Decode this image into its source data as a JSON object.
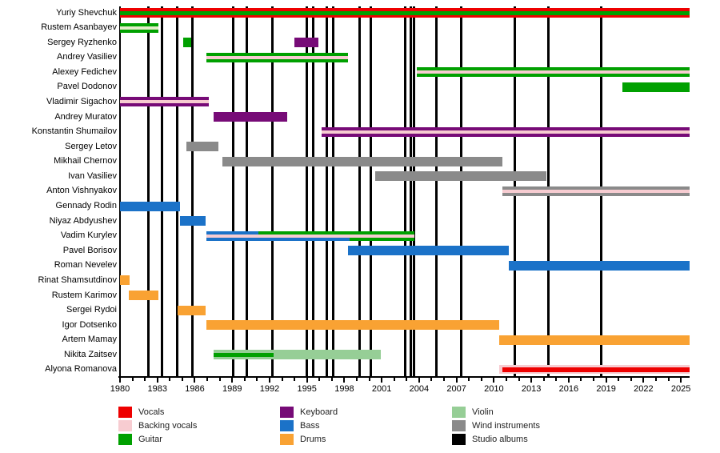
{
  "page": {
    "background": "#ffffff"
  },
  "chart_data": {
    "type": "bar",
    "subtype": "band-membership-timeline",
    "title": "",
    "xlabel": "",
    "ylabel": "",
    "grid": false,
    "legend_position": "bottom",
    "x_axis": {
      "min": 1980,
      "max": 2025.7,
      "major_tick_years": [
        1980,
        1983,
        1986,
        1989,
        1992,
        1995,
        1998,
        2001,
        2004,
        2007,
        2010,
        2013,
        2016,
        2019,
        2022,
        2025
      ],
      "minor_tick_interval": 1
    },
    "role_colors": {
      "vocals": "#EE0000",
      "backing_vocals": "#F7CCD1",
      "guitar": "#00A000",
      "keyboard": "#770B77",
      "bass": "#1B72C8",
      "drums": "#F9A233",
      "violin": "#96CE96",
      "wind": "#8A8A8A",
      "studio_album": "#000000"
    },
    "legend": {
      "columns": [
        [
          {
            "role": "vocals",
            "label": "Vocals"
          },
          {
            "role": "backing_vocals",
            "label": "Backing vocals"
          },
          {
            "role": "guitar",
            "label": "Guitar"
          }
        ],
        [
          {
            "role": "keyboard",
            "label": "Keyboard"
          },
          {
            "role": "bass",
            "label": "Bass"
          },
          {
            "role": "drums",
            "label": "Drums"
          }
        ],
        [
          {
            "role": "violin",
            "label": "Violin"
          },
          {
            "role": "wind",
            "label": "Wind instruments"
          },
          {
            "role": "studio_album",
            "label": "Studio albums"
          }
        ]
      ]
    },
    "studio_album_years": [
      1982.3,
      1983.4,
      1984.6,
      1985.8,
      1989.1,
      1990.2,
      1992.2,
      1995.0,
      1995.5,
      1996.6,
      1997.1,
      1999.2,
      2000.1,
      2002.9,
      2003.3,
      2003.6,
      2005.4,
      2007.4,
      2011.7,
      2014.4,
      2018.6
    ],
    "members": [
      {
        "name": "Yuriy Shevchuk",
        "segments": [
          {
            "role": "vocals",
            "start": 1980,
            "end": 2025.7,
            "band": "full"
          },
          {
            "role": "guitar",
            "start": 1980,
            "end": 2025.7,
            "band": "mid"
          }
        ]
      },
      {
        "name": "Rustem Asanbayev",
        "segments": [
          {
            "role": "guitar",
            "start": 1980,
            "end": 1983.1,
            "band": "full"
          },
          {
            "role": "backing_vocals",
            "start": 1980,
            "end": 1983.1,
            "band": "stripe",
            "color": "#E3EDC9"
          }
        ]
      },
      {
        "name": "Sergey Ryzhenko",
        "segments": [
          {
            "role": "guitar",
            "start": 1985.1,
            "end": 1985.7,
            "band": "full"
          },
          {
            "role": "keyboard",
            "start": 1994.0,
            "end": 1995.9,
            "band": "full"
          }
        ]
      },
      {
        "name": "Andrey Vasiliev",
        "segments": [
          {
            "role": "guitar",
            "start": 1986.9,
            "end": 1998.3,
            "band": "full"
          },
          {
            "role": "backing_vocals",
            "start": 1986.9,
            "end": 1998.3,
            "band": "stripe"
          }
        ]
      },
      {
        "name": "Alexey Fedichev",
        "segments": [
          {
            "role": "guitar",
            "start": 2003.8,
            "end": 2025.7,
            "band": "full"
          },
          {
            "role": "backing_vocals",
            "start": 2003.8,
            "end": 2025.7,
            "band": "stripe"
          }
        ]
      },
      {
        "name": "Pavel Dodonov",
        "segments": [
          {
            "role": "guitar",
            "start": 2020.3,
            "end": 2025.7,
            "band": "full"
          }
        ]
      },
      {
        "name": "Vladimir Sigachov",
        "segments": [
          {
            "role": "keyboard",
            "start": 1980,
            "end": 1987.1,
            "band": "full"
          },
          {
            "role": "backing_vocals",
            "start": 1980,
            "end": 1987.1,
            "band": "stripe"
          }
        ]
      },
      {
        "name": "Andrey Muratov",
        "segments": [
          {
            "role": "keyboard",
            "start": 1987.5,
            "end": 1993.4,
            "band": "full"
          }
        ]
      },
      {
        "name": "Konstantin Shumailov",
        "segments": [
          {
            "role": "keyboard",
            "start": 1996.2,
            "end": 2025.7,
            "band": "full"
          },
          {
            "role": "backing_vocals",
            "start": 1996.2,
            "end": 2025.7,
            "band": "stripe"
          }
        ]
      },
      {
        "name": "Sergey Letov",
        "segments": [
          {
            "role": "wind",
            "start": 1985.3,
            "end": 1987.9,
            "band": "full"
          }
        ]
      },
      {
        "name": "Mikhail Chernov",
        "segments": [
          {
            "role": "wind",
            "start": 1988.2,
            "end": 2010.7,
            "band": "full"
          }
        ]
      },
      {
        "name": "Ivan Vasiliev",
        "segments": [
          {
            "role": "wind",
            "start": 2000.5,
            "end": 2014.2,
            "band": "full"
          }
        ]
      },
      {
        "name": "Anton Vishnyakov",
        "segments": [
          {
            "role": "wind",
            "start": 2010.7,
            "end": 2025.7,
            "band": "full"
          },
          {
            "role": "backing_vocals",
            "start": 2010.7,
            "end": 2025.7,
            "band": "stripe"
          }
        ]
      },
      {
        "name": "Gennady Rodin",
        "segments": [
          {
            "role": "bass",
            "start": 1980,
            "end": 1984.8,
            "band": "full"
          }
        ]
      },
      {
        "name": "Niyaz Abdyushev",
        "segments": [
          {
            "role": "bass",
            "start": 1984.8,
            "end": 1986.9,
            "band": "full"
          }
        ]
      },
      {
        "name": "Vadim Kurylev",
        "segments": [
          {
            "role": "bass",
            "start": 1986.9,
            "end": 1998.4,
            "band": "full"
          },
          {
            "role": "guitar",
            "start": 1991.1,
            "end": 2003.6,
            "band": "full"
          },
          {
            "role": "bass",
            "start": 1991.1,
            "end": 1998.4,
            "band": "bottom"
          },
          {
            "role": "backing_vocals",
            "start": 1986.9,
            "end": 2003.6,
            "band": "stripe"
          }
        ]
      },
      {
        "name": "Pavel Borisov",
        "segments": [
          {
            "role": "bass",
            "start": 1998.3,
            "end": 2011.2,
            "band": "full"
          }
        ]
      },
      {
        "name": "Roman Nevelev",
        "segments": [
          {
            "role": "bass",
            "start": 2011.2,
            "end": 2025.7,
            "band": "full"
          }
        ]
      },
      {
        "name": "Rinat Shamsutdinov",
        "segments": [
          {
            "role": "drums",
            "start": 1980,
            "end": 1980.8,
            "band": "full"
          }
        ]
      },
      {
        "name": "Rustem Karimov",
        "segments": [
          {
            "role": "drums",
            "start": 1980.7,
            "end": 1983.1,
            "band": "full"
          }
        ]
      },
      {
        "name": "Sergei Rydoi",
        "segments": [
          {
            "role": "drums",
            "start": 1984.6,
            "end": 1986.9,
            "band": "full"
          }
        ]
      },
      {
        "name": "Igor Dotsenko",
        "segments": [
          {
            "role": "drums",
            "start": 1986.9,
            "end": 2010.4,
            "band": "full"
          }
        ]
      },
      {
        "name": "Artem Mamay",
        "segments": [
          {
            "role": "drums",
            "start": 2010.4,
            "end": 2025.7,
            "band": "full"
          }
        ]
      },
      {
        "name": "Nikita Zaitsev",
        "segments": [
          {
            "role": "violin",
            "start": 1987.5,
            "end": 2000.9,
            "band": "full"
          },
          {
            "role": "guitar",
            "start": 1987.5,
            "end": 1992.3,
            "band": "mid"
          }
        ]
      },
      {
        "name": "Alyona Romanova",
        "segments": [
          {
            "role": "backing_vocals",
            "start": 2010.4,
            "end": 2025.7,
            "band": "full11"
          },
          {
            "role": "vocals",
            "start": 2010.7,
            "end": 2025.7,
            "band": "mid6"
          }
        ]
      }
    ]
  }
}
